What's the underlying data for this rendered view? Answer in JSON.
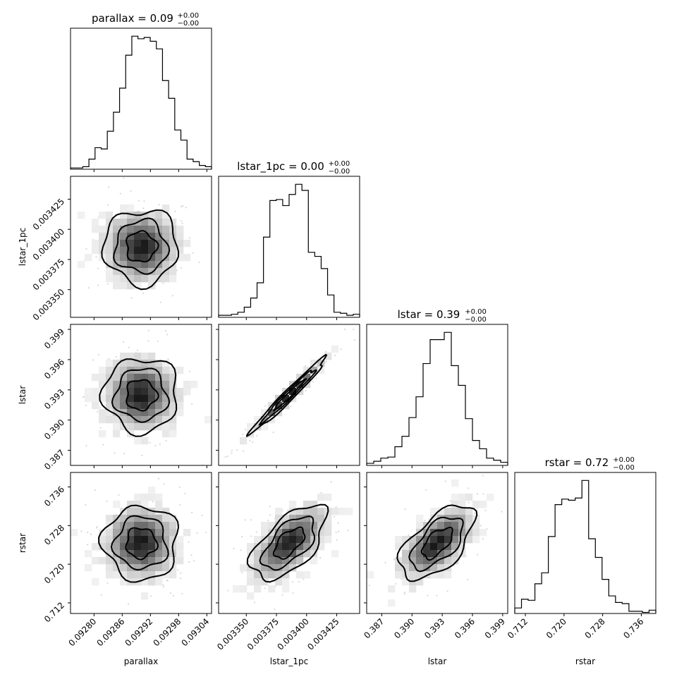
{
  "chart_data": {
    "type": "corner",
    "params": [
      {
        "name": "parallax",
        "title_label": "parallax = 0.09",
        "title_sup": "+0.00",
        "title_sub": "−0.00",
        "range": [
          0.09275,
          0.09305
        ],
        "ticks": [
          0.0928,
          0.09286,
          0.09292,
          0.09298,
          0.09304
        ],
        "tick_labels": [
          "0.09280",
          "0.09286",
          "0.09292",
          "0.09298",
          "0.09304"
        ],
        "hist": [
          1,
          1,
          2,
          8,
          17,
          16,
          30,
          45,
          64,
          90,
          105,
          103,
          104,
          101,
          95,
          70,
          56,
          31,
          23,
          8,
          6,
          3,
          2
        ]
      },
      {
        "name": "lstar_1pc",
        "title_label": "lstar_1pc = 0.00",
        "title_sup": "+0.00",
        "title_sub": "−0.00",
        "range": [
          0.003327,
          0.003444
        ],
        "ticks": [
          0.00335,
          0.003375,
          0.0034,
          0.003425
        ],
        "tick_labels": [
          "0.003350",
          "0.003375",
          "0.003400",
          "0.003425"
        ],
        "hist": [
          2,
          2,
          3,
          5,
          10,
          19,
          34,
          79,
          115,
          116,
          110,
          121,
          131,
          125,
          64,
          60,
          48,
          22,
          5,
          4,
          2,
          3
        ]
      },
      {
        "name": "lstar",
        "title_label": "lstar = 0.39",
        "title_sup": "+0.00",
        "title_sub": "−0.00",
        "range": [
          0.3855,
          0.3995
        ],
        "ticks": [
          0.387,
          0.39,
          0.393,
          0.396,
          0.399
        ],
        "tick_labels": [
          "0.387",
          "0.390",
          "0.393",
          "0.396",
          "0.399"
        ],
        "hist": [
          2,
          4,
          7,
          8,
          18,
          28,
          46,
          66,
          98,
          121,
          121,
          128,
          96,
          77,
          45,
          24,
          16,
          7,
          5,
          3
        ]
      },
      {
        "name": "rstar",
        "title_label": "rstar = 0.72",
        "title_sup": "+0.00",
        "title_sub": "−0.00",
        "range": [
          0.7098,
          0.739
        ],
        "ticks": [
          0.712,
          0.72,
          0.728,
          0.736
        ],
        "tick_labels": [
          "0.712",
          "0.720",
          "0.728",
          "0.736"
        ],
        "hist": [
          5,
          13,
          12,
          27,
          37,
          70,
          99,
          104,
          103,
          105,
          121,
          68,
          51,
          31,
          16,
          10,
          9,
          2,
          2,
          1,
          3
        ]
      }
    ],
    "correlations": {
      "1-0": 0.0,
      "2-0": 0.0,
      "2-1": 0.98,
      "3-0": 0.0,
      "3-1": 0.6,
      "3-2": 0.6
    }
  }
}
